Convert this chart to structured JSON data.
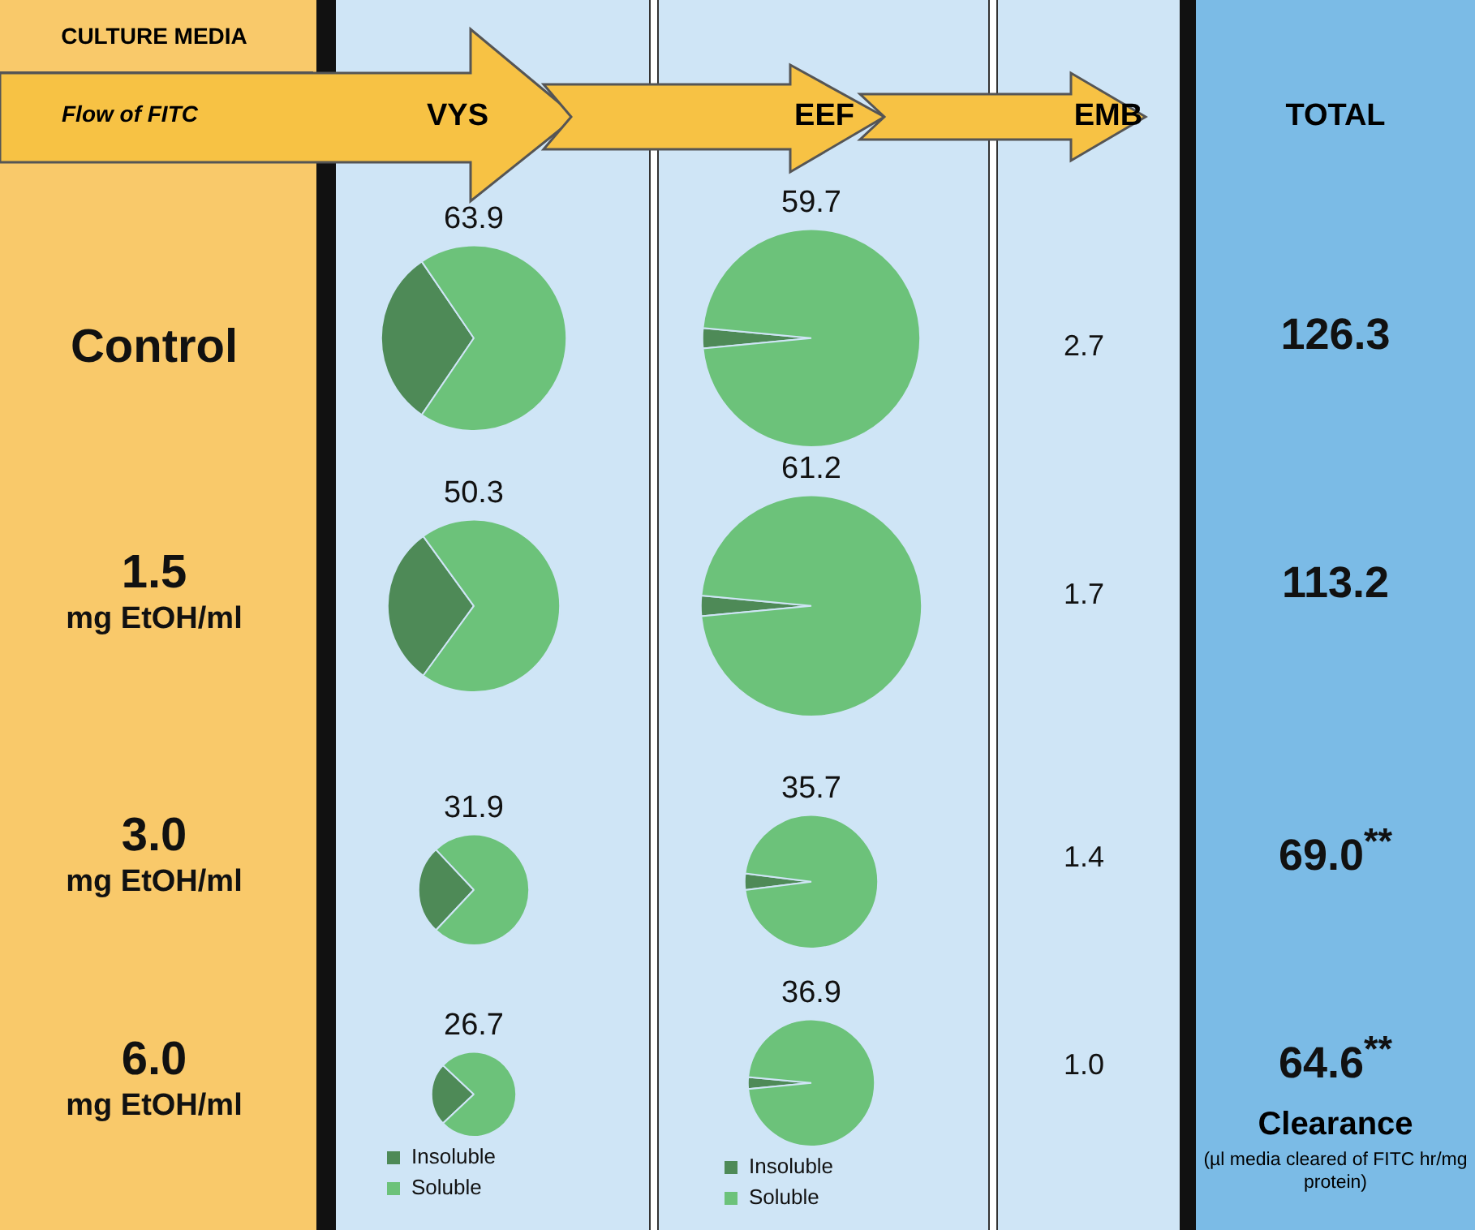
{
  "chart_data": [
    {
      "type": "other",
      "title": "CULTURE MEDIA",
      "subtitle": "Flow of FITC",
      "categories": [
        "VYS",
        "EEF",
        "EMB",
        "TOTAL"
      ],
      "y_categories": [
        "Control",
        "1.5 mg EtOH/ml",
        "3.0 mg EtOH/ml",
        "6.0 mg EtOH/ml"
      ],
      "cell_labels": [
        [
          null,
          null,
          "2.7",
          "126.3"
        ],
        [
          null,
          null,
          "1.7",
          "113.2"
        ],
        [
          null,
          null,
          "1.4",
          "69.0$^{**}$"
        ],
        [
          null,
          null,
          "1.0",
          "64.6$^{**}$"
        ]
      ],
      "annotations": [
        "Clearance",
        "(µl media cleared of FITC hr/mg protein)"
      ]
    },
    {
      "type": "pie",
      "title": "63.9",
      "categories": [
        null,
        null
      ],
      "values": [
        31,
        69
      ],
      "colors": [
        "#4e8a57",
        "#6cc27a"
      ]
    },
    {
      "type": "pie",
      "title": "59.7",
      "categories": [
        null,
        null
      ],
      "values": [
        3,
        97
      ],
      "colors": [
        "#4e8a57",
        "#6cc27a"
      ]
    },
    {
      "type": "pie",
      "title": "50.3",
      "categories": [
        null,
        null
      ],
      "values": [
        30,
        70
      ],
      "colors": [
        "#4e8a57",
        "#6cc27a"
      ]
    },
    {
      "type": "pie",
      "title": "61.2",
      "categories": [
        null,
        null
      ],
      "values": [
        3,
        97
      ],
      "colors": [
        "#4e8a57",
        "#6cc27a"
      ]
    },
    {
      "type": "pie",
      "title": "31.9",
      "categories": [
        null,
        null
      ],
      "values": [
        26,
        74
      ],
      "colors": [
        "#4e8a57",
        "#6cc27a"
      ]
    },
    {
      "type": "pie",
      "title": "35.7",
      "categories": [
        null,
        null
      ],
      "values": [
        4,
        96
      ],
      "colors": [
        "#4e8a57",
        "#6cc27a"
      ]
    },
    {
      "type": "pie",
      "title": "26.7",
      "categories": [
        "Insoluble",
        "Soluble"
      ],
      "values": [
        24,
        76
      ],
      "colors": [
        "#4e8a57",
        "#6cc27a"
      ],
      "legend": "bottom"
    },
    {
      "type": "pie",
      "title": "36.9",
      "categories": [
        "Insoluble",
        "Soluble"
      ],
      "values": [
        3,
        97
      ],
      "colors": [
        "#4e8a57",
        "#6cc27a"
      ],
      "legend": "bottom"
    }
  ]
}
